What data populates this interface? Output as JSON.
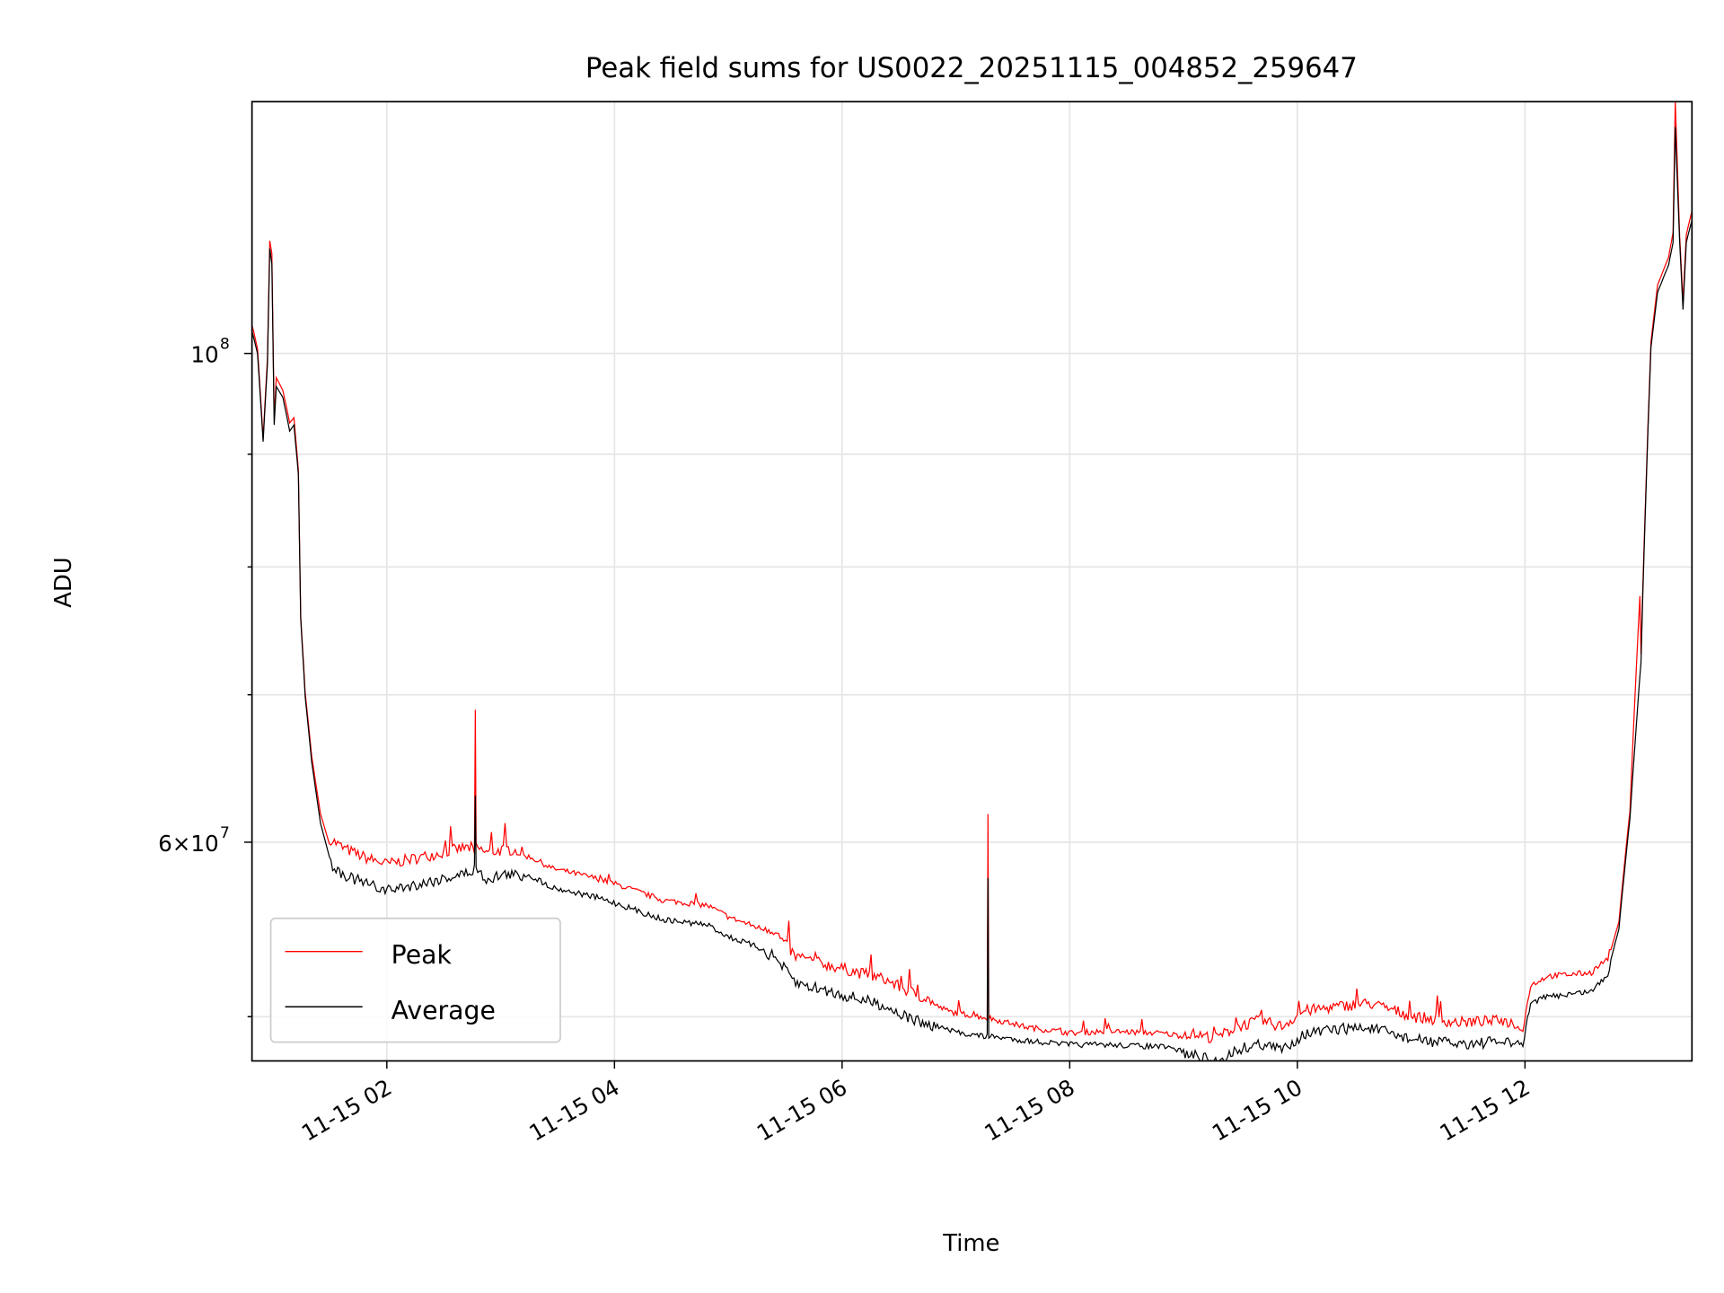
{
  "chart_data": {
    "type": "line",
    "title": "Peak field sums for US0022_20251115_004852_259647",
    "xlabel": "Time",
    "ylabel": "ADU",
    "yscale": "log",
    "x_units": "hours since 11-15 00:00",
    "xlim": [
      0.815,
      13.467
    ],
    "ylim": [
      47740000.0,
      130100000.0
    ],
    "grid": true,
    "legend_position": "lower-left",
    "x_ticks": [
      {
        "value": 2,
        "label": "11-15 02"
      },
      {
        "value": 4,
        "label": "11-15 04"
      },
      {
        "value": 6,
        "label": "11-15 06"
      },
      {
        "value": 8,
        "label": "11-15 08"
      },
      {
        "value": 10,
        "label": "11-15 10"
      },
      {
        "value": 12,
        "label": "11-15 12"
      }
    ],
    "y_major_ticks": [
      {
        "value": 100000000.0,
        "base": "10",
        "exp": "8"
      },
      {
        "value": 60000000.0,
        "base": "6×10",
        "exp": "7"
      }
    ],
    "y_minor_ticks": [
      50000000.0,
      70000000.0,
      80000000.0,
      90000000.0
    ],
    "y_value_scale": 10000000.0,
    "series": [
      {
        "name": "Peak",
        "color": "#ff0000",
        "x": [
          0.816,
          0.864,
          0.913,
          0.951,
          0.971,
          0.99,
          1.01,
          1.029,
          1.087,
          1.146,
          1.184,
          1.223,
          1.243,
          1.282,
          1.34,
          1.417,
          1.495,
          1.612,
          1.806,
          2.0,
          2.291,
          2.485,
          2.68,
          2.77,
          2.777,
          2.784,
          2.874,
          3.068,
          3.262,
          3.456,
          3.845,
          4.039,
          4.427,
          4.816,
          5.01,
          5.398,
          5.592,
          5.981,
          6.369,
          6.563,
          6.951,
          7.275,
          7.282,
          7.289,
          7.34,
          7.631,
          8.019,
          8.311,
          8.796,
          9.087,
          9.282,
          9.476,
          9.67,
          9.864,
          10.058,
          10.447,
          10.641,
          11.029,
          11.417,
          11.806,
          11.981,
          12.049,
          12.194,
          12.583,
          12.728,
          12.825,
          12.922,
          13.01,
          13.019,
          13.068,
          13.107,
          13.165,
          13.262,
          13.301,
          13.32,
          13.359,
          13.388,
          13.417,
          13.466
        ],
        "y": [
          10.3,
          10.05,
          9.15,
          9.95,
          11.25,
          11.1,
          9.35,
          9.75,
          9.62,
          9.3,
          9.35,
          8.85,
          7.6,
          7.02,
          6.56,
          6.18,
          5.99,
          5.93,
          5.87,
          5.83,
          5.87,
          5.9,
          5.93,
          5.93,
          6.89,
          5.93,
          5.9,
          5.92,
          5.89,
          5.82,
          5.76,
          5.72,
          5.63,
          5.6,
          5.53,
          5.44,
          5.29,
          5.23,
          5.17,
          5.11,
          5.01,
          4.98,
          6.18,
          4.98,
          4.97,
          4.93,
          4.9,
          4.91,
          4.9,
          4.88,
          4.86,
          4.92,
          4.95,
          4.92,
          5.0,
          5.03,
          5.04,
          4.97,
          4.94,
          4.95,
          4.92,
          5.15,
          5.2,
          5.22,
          5.3,
          5.52,
          6.2,
          7.76,
          7.3,
          8.86,
          10.12,
          10.74,
          11.06,
          11.35,
          13.01,
          11.3,
          10.55,
          11.32,
          11.6
        ]
      },
      {
        "name": "Average",
        "color": "#000000",
        "x": [
          0.816,
          0.864,
          0.913,
          0.951,
          0.971,
          0.99,
          1.01,
          1.029,
          1.087,
          1.146,
          1.184,
          1.223,
          1.243,
          1.282,
          1.34,
          1.417,
          1.495,
          1.612,
          1.806,
          2.0,
          2.291,
          2.485,
          2.68,
          2.77,
          2.777,
          2.784,
          2.874,
          3.068,
          3.262,
          3.456,
          3.845,
          4.039,
          4.427,
          4.816,
          5.01,
          5.398,
          5.592,
          5.981,
          6.369,
          6.563,
          6.951,
          7.275,
          7.282,
          7.289,
          7.34,
          7.631,
          8.019,
          8.311,
          8.796,
          9.087,
          9.282,
          9.476,
          9.67,
          9.864,
          10.058,
          10.447,
          10.641,
          11.029,
          11.417,
          11.806,
          11.981,
          12.049,
          12.194,
          12.583,
          12.728,
          12.825,
          12.922,
          13.019,
          13.068,
          13.107,
          13.165,
          13.262,
          13.301,
          13.32,
          13.359,
          13.388,
          13.417,
          13.466
        ],
        "y": [
          10.23,
          10.0,
          9.12,
          9.89,
          11.16,
          10.98,
          9.28,
          9.66,
          9.55,
          9.22,
          9.28,
          8.81,
          7.58,
          6.99,
          6.52,
          6.12,
          5.91,
          5.84,
          5.78,
          5.74,
          5.78,
          5.81,
          5.84,
          5.86,
          6.3,
          5.86,
          5.81,
          5.84,
          5.81,
          5.74,
          5.68,
          5.64,
          5.55,
          5.52,
          5.45,
          5.36,
          5.21,
          5.15,
          5.09,
          5.03,
          4.94,
          4.91,
          5.78,
          4.91,
          4.91,
          4.89,
          4.87,
          4.87,
          4.86,
          4.83,
          4.8,
          4.86,
          4.89,
          4.86,
          4.94,
          4.97,
          4.97,
          4.91,
          4.89,
          4.9,
          4.87,
          5.09,
          5.12,
          5.15,
          5.24,
          5.48,
          6.15,
          7.24,
          8.81,
          10.06,
          10.66,
          10.97,
          11.23,
          12.67,
          11.23,
          10.47,
          11.23,
          11.49
        ]
      }
    ]
  }
}
